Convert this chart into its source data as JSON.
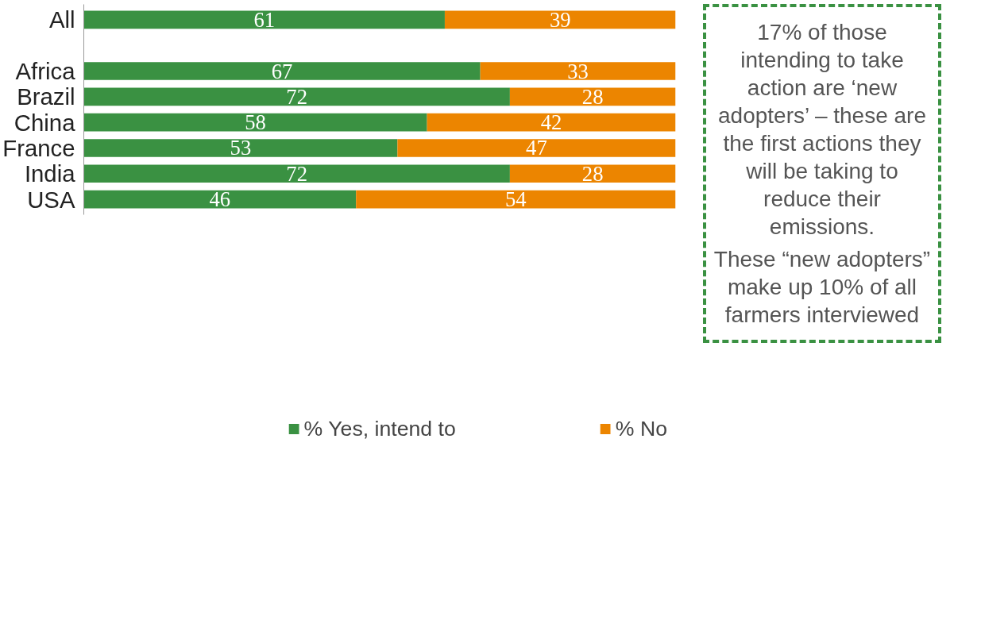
{
  "chart_data": {
    "type": "bar",
    "orientation": "horizontal",
    "stacked": true,
    "categories": [
      "All",
      null,
      "Africa",
      "Brazil",
      "China",
      "France",
      "India",
      "USA"
    ],
    "series": [
      {
        "name": "% Yes, intend to",
        "color": "#3a9142",
        "values": [
          61,
          null,
          67,
          72,
          58,
          53,
          72,
          46
        ]
      },
      {
        "name": "% No",
        "color": "#ec8500",
        "values": [
          39,
          null,
          33,
          28,
          42,
          47,
          28,
          54
        ]
      }
    ],
    "data_labels": true,
    "legend": "bottom",
    "grid": false,
    "annotations": [
      "17% of those intending to take action are ‘new adopters’ – these are the first actions they will be taking to reduce their emissions.",
      "These “new adopters” make up 10% of all farmers interviewed"
    ]
  }
}
